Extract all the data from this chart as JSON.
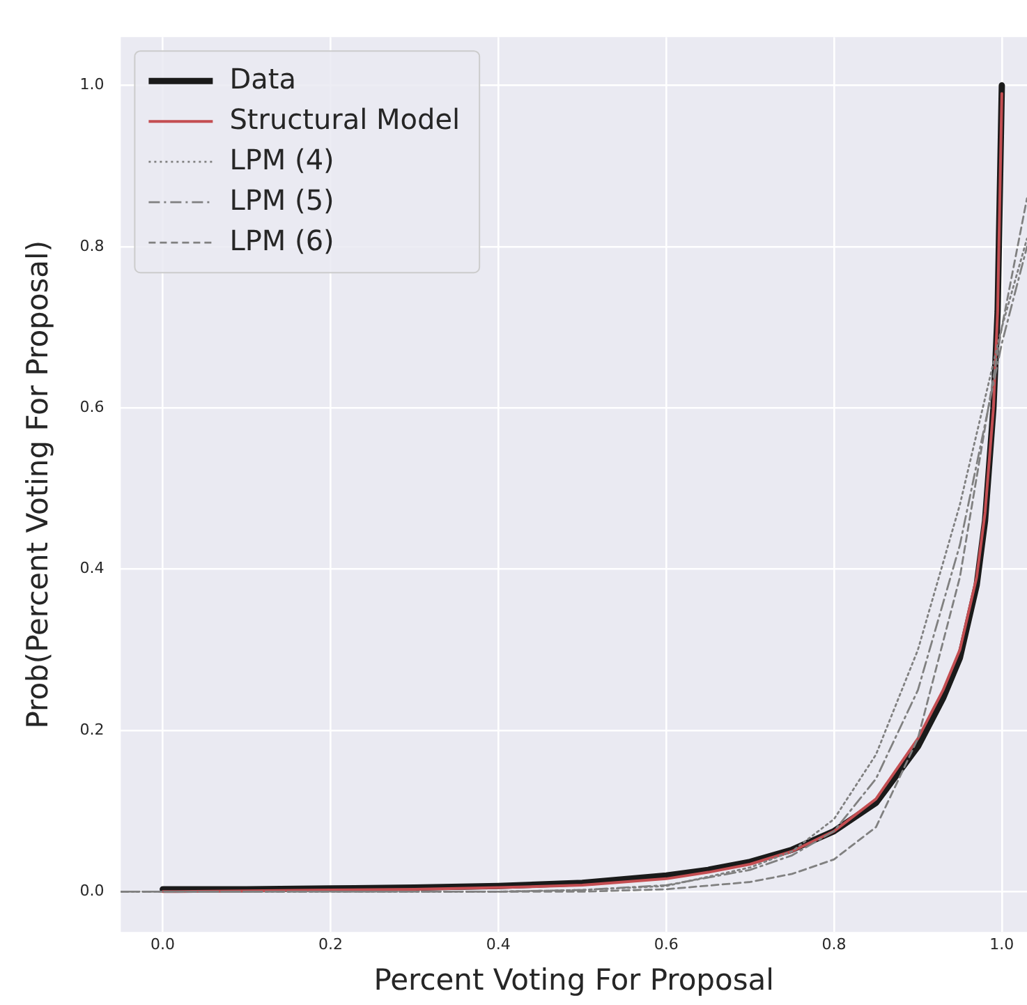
{
  "chart_data": {
    "type": "line",
    "xlabel": "Percent Voting For Proposal",
    "ylabel": "Prob(Percent Voting For Proposal)",
    "xlim": [
      -0.05,
      1.03
    ],
    "ylim": [
      -0.05,
      1.06
    ],
    "xticks": [
      {
        "value": 0,
        "label": "0.0"
      },
      {
        "value": 0.2,
        "label": "0.2"
      },
      {
        "value": 0.4,
        "label": "0.4"
      },
      {
        "value": 0.6,
        "label": "0.6"
      },
      {
        "value": 0.8,
        "label": "0.8"
      },
      {
        "value": 1,
        "label": "1.0"
      }
    ],
    "yticks": [
      {
        "value": 0,
        "label": "0.0"
      },
      {
        "value": 0.2,
        "label": "0.2"
      },
      {
        "value": 0.4,
        "label": "0.4"
      },
      {
        "value": 0.6,
        "label": "0.6"
      },
      {
        "value": 0.8,
        "label": "0.8"
      },
      {
        "value": 1,
        "label": "1.0"
      }
    ],
    "grid": true,
    "legend": "top left",
    "marker": "none",
    "series": [
      {
        "name": "Data",
        "color": "#1a1a1a",
        "line_style": "solid",
        "x": [
          0,
          0.1,
          0.2,
          0.3,
          0.4,
          0.5,
          0.6,
          0.65,
          0.7,
          0.75,
          0.8,
          0.85,
          0.9,
          0.93,
          0.95,
          0.97,
          0.98,
          0.99,
          0.995,
          1.0
        ],
        "values": [
          0.003,
          0.003,
          0.004,
          0.005,
          0.007,
          0.011,
          0.02,
          0.027,
          0.037,
          0.052,
          0.075,
          0.11,
          0.18,
          0.24,
          0.29,
          0.38,
          0.46,
          0.6,
          0.72,
          1.0
        ]
      },
      {
        "name": "Structural Model",
        "color": "#c44e52",
        "line_style": "solid",
        "x": [
          0,
          0.1,
          0.2,
          0.3,
          0.4,
          0.5,
          0.6,
          0.65,
          0.7,
          0.75,
          0.8,
          0.85,
          0.9,
          0.93,
          0.95,
          0.97,
          0.98,
          0.99,
          0.995,
          1.0
        ],
        "values": [
          0.0,
          0.001,
          0.002,
          0.003,
          0.005,
          0.008,
          0.016,
          0.024,
          0.034,
          0.05,
          0.075,
          0.115,
          0.19,
          0.25,
          0.3,
          0.39,
          0.47,
          0.6,
          0.72,
          0.99
        ]
      },
      {
        "name": "LPM (4)",
        "color": "#808080",
        "line_style": "dotted",
        "x": [
          -0.05,
          0,
          0.2,
          0.4,
          0.5,
          0.6,
          0.7,
          0.75,
          0.8,
          0.85,
          0.9,
          0.95,
          1.0,
          1.03
        ],
        "values": [
          0,
          0,
          0,
          0,
          0.002,
          0.007,
          0.03,
          0.05,
          0.09,
          0.17,
          0.3,
          0.48,
          0.7,
          0.81
        ]
      },
      {
        "name": "LPM (5)",
        "color": "#808080",
        "line_style": "dashdot",
        "x": [
          -0.05,
          0,
          0.2,
          0.4,
          0.5,
          0.6,
          0.7,
          0.75,
          0.8,
          0.85,
          0.9,
          0.95,
          1.0,
          1.03
        ],
        "values": [
          0,
          0,
          0,
          0,
          0.002,
          0.008,
          0.027,
          0.045,
          0.075,
          0.14,
          0.25,
          0.43,
          0.68,
          0.8
        ]
      },
      {
        "name": "LPM (6)",
        "color": "#808080",
        "line_style": "dashed",
        "x": [
          -0.05,
          0,
          0.2,
          0.4,
          0.5,
          0.6,
          0.7,
          0.75,
          0.8,
          0.85,
          0.9,
          0.95,
          1.0,
          1.03
        ],
        "values": [
          0,
          0,
          0,
          0,
          0,
          0.003,
          0.012,
          0.022,
          0.04,
          0.08,
          0.19,
          0.39,
          0.7,
          0.86
        ]
      }
    ]
  }
}
